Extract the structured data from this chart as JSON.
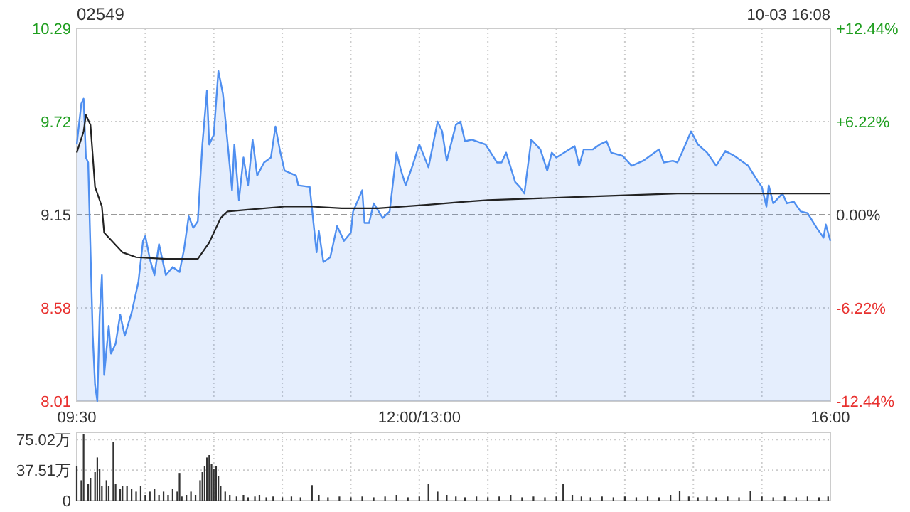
{
  "chart_data": [
    {
      "type": "area",
      "title": "02549",
      "subtitle": "10-03 16:08",
      "categories": [
        "09:30",
        null,
        null,
        null,
        null,
        null,
        null,
        null,
        null,
        null,
        null,
        null,
        null,
        null,
        null,
        null,
        null,
        null,
        null,
        null,
        null,
        null,
        null,
        null,
        null,
        null,
        null,
        null,
        null,
        null,
        null,
        null,
        null,
        null,
        null,
        null,
        null,
        null,
        null,
        null,
        null,
        null,
        null,
        null,
        null,
        null,
        null,
        null,
        null,
        null,
        null,
        null,
        null,
        null,
        null,
        null,
        null,
        null,
        null,
        null,
        null,
        null,
        null,
        null,
        null,
        null,
        null,
        null,
        null,
        null,
        null,
        null,
        null,
        null,
        null,
        null,
        null,
        null,
        null,
        null,
        null,
        null,
        null,
        null,
        null,
        null,
        null,
        null,
        null,
        null,
        null,
        null,
        null,
        null,
        null,
        null,
        null,
        null,
        null,
        null,
        null,
        null,
        null,
        null,
        null,
        null,
        null,
        null,
        null,
        null,
        null,
        null,
        null,
        null,
        null,
        null,
        null,
        null,
        null,
        null,
        null,
        null,
        null,
        null,
        null,
        null,
        null,
        null,
        null,
        null,
        null,
        null,
        null,
        null,
        null,
        null,
        null,
        null,
        null,
        null,
        null,
        null,
        null,
        null,
        null,
        null,
        null,
        null,
        null,
        null,
        "12:00/13:00",
        null,
        null,
        null,
        null,
        null,
        null,
        null,
        null,
        null,
        null,
        null,
        null,
        null,
        null,
        null,
        null,
        null,
        null,
        null,
        null,
        null,
        null,
        null,
        null,
        null,
        null,
        null,
        null,
        null,
        null,
        null,
        null,
        null,
        null,
        null,
        null,
        null,
        null,
        null,
        null,
        null,
        null,
        null,
        null,
        null,
        null,
        null,
        null,
        null,
        null,
        null,
        null,
        null,
        null,
        null,
        null,
        null,
        null,
        null,
        null,
        null,
        null,
        null,
        null,
        null,
        null,
        null,
        null,
        null,
        null,
        null,
        null,
        null,
        null,
        null,
        null,
        null,
        null,
        null,
        null,
        null,
        null,
        null,
        null,
        null,
        null,
        null,
        null,
        null,
        null,
        null,
        null,
        null,
        null,
        null,
        null,
        null,
        null,
        null,
        null,
        null,
        null,
        null,
        null,
        null,
        null,
        null,
        null,
        null,
        null,
        null,
        null,
        null,
        null,
        null,
        null,
        null,
        null,
        null,
        null,
        null,
        null,
        null,
        null,
        null,
        null,
        null,
        null,
        null,
        null,
        null,
        null,
        null,
        null,
        null,
        null,
        null,
        null,
        null,
        null,
        null,
        null,
        null,
        null,
        null,
        null,
        null,
        null,
        null,
        null,
        null,
        null,
        null,
        null,
        null,
        null,
        null,
        null,
        null,
        null,
        null,
        null,
        null,
        null,
        null,
        null,
        null,
        null,
        null,
        null,
        null,
        null,
        null,
        null,
        null,
        null,
        null,
        null,
        null,
        "16:00"
      ],
      "ylim": [
        8.01,
        10.29
      ],
      "yticks": [
        8.01,
        8.58,
        9.15,
        9.72,
        10.29
      ],
      "y2lim": [
        -12.44,
        12.44
      ],
      "y2ticks": [
        {
          "value": -12.44,
          "label": "-12.44%"
        },
        {
          "value": -6.22,
          "label": "-6.22%"
        },
        {
          "value": 0,
          "label": "0.00%"
        },
        {
          "value": 6.22,
          "label": "+6.22%"
        },
        {
          "value": 12.44,
          "label": "+12.44%"
        }
      ],
      "grid": true,
      "ref_lines": [
        {
          "axis": "y",
          "value": 9.15,
          "line_style": "dashed",
          "color": "#999999"
        }
      ],
      "series": [
        {
          "color": "#4f8ff0",
          "values": [
            9.58,
            null,
            9.83,
            9.86,
            9.5,
            9.47,
            null,
            8.41,
            8.11,
            8.01,
            8.53,
            8.78,
            8.17,
            null,
            8.47,
            8.3,
            null,
            8.36,
            null,
            8.54,
            null,
            8.41,
            null,
            null,
            8.55,
            null,
            null,
            8.74,
            null,
            8.99,
            9.02,
            null,
            8.88,
            null,
            8.78,
            null,
            8.97,
            null,
            null,
            8.78,
            null,
            null,
            8.83,
            null,
            null,
            8.8,
            null,
            8.94,
            null,
            9.14,
            null,
            9.07,
            null,
            9.11,
            null,
            9.58,
            null,
            9.91,
            9.58,
            null,
            9.64,
            null,
            10.03,
            null,
            9.89,
            null,
            null,
            null,
            9.3,
            9.58,
            null,
            9.24,
            null,
            9.5,
            null,
            9.33,
            null,
            9.61,
            null,
            9.39,
            null,
            null,
            9.47,
            null,
            null,
            9.5,
            null,
            9.69,
            null,
            9.54,
            null,
            9.42,
            null,
            null,
            null,
            null,
            9.39,
            9.33,
            null,
            null,
            null,
            null,
            9.32,
            null,
            null,
            8.92,
            9.05,
            null,
            8.86,
            null,
            null,
            8.89,
            null,
            null,
            9.08,
            null,
            null,
            8.99,
            null,
            null,
            9.04,
            9.17,
            null,
            null,
            null,
            9.3,
            9.1,
            null,
            9.1,
            null,
            9.22,
            null,
            null,
            null,
            9.13,
            null,
            null,
            9.17,
            null,
            null,
            9.53,
            null,
            9.42,
            null,
            9.33,
            null,
            null,
            9.45,
            null,
            null,
            9.58,
            null,
            null,
            null,
            9.44,
            null,
            null,
            null,
            9.72,
            null,
            9.66,
            null,
            9.48,
            null,
            null,
            null,
            9.7,
            null,
            9.72,
            null,
            9.6,
            null,
            null,
            9.61,
            null,
            null,
            null,
            null,
            null,
            9.58,
            null,
            null,
            null,
            null,
            9.47,
            null,
            9.47,
            null,
            9.53,
            null,
            null,
            null,
            9.35,
            null,
            9.32,
            null,
            9.28,
            null,
            null,
            9.61,
            null,
            9.58,
            null,
            9.55,
            null,
            null,
            9.42,
            null,
            9.53,
            null,
            9.5,
            null,
            null,
            null,
            null,
            null,
            null,
            null,
            9.57,
            null,
            9.45,
            null,
            9.55,
            null,
            null,
            null,
            9.55,
            null,
            null,
            9.58,
            null,
            null,
            9.6,
            null,
            9.53,
            null,
            null,
            null,
            null,
            9.51,
            null,
            null,
            null,
            9.45,
            null,
            null,
            null,
            null,
            9.48,
            null,
            null,
            9.51,
            null,
            null,
            null,
            9.55,
            null,
            9.47,
            null,
            null,
            null,
            9.48,
            null,
            9.47,
            null,
            9.53,
            null,
            null,
            null,
            9.66,
            null,
            null,
            9.58,
            null,
            null,
            null,
            9.53,
            null,
            null,
            null,
            9.45,
            null,
            null,
            null,
            9.54,
            null,
            null,
            null,
            9.51,
            null,
            null,
            null,
            null,
            null,
            9.45,
            null,
            null,
            null,
            9.36,
            null,
            9.32,
            null,
            9.2,
            9.33,
            null,
            9.22,
            null,
            null,
            null,
            9.28,
            null,
            9.22,
            null,
            null,
            9.23,
            null,
            null,
            9.17,
            null,
            null,
            9.16,
            null,
            null,
            null,
            9.07,
            null,
            null,
            9.01,
            9.09,
            null,
            8.99
          ]
        },
        {
          "type": "line",
          "color": "#222222",
          "values": [
            9.53,
            null,
            null,
            9.66,
            9.76,
            null,
            9.7,
            null,
            9.32,
            null,
            null,
            9.2,
            9.04,
            null,
            null,
            null,
            8.98,
            null,
            null,
            null,
            8.92,
            null,
            null,
            null,
            null,
            null,
            8.89,
            null,
            null,
            null,
            null,
            null,
            null,
            null,
            null,
            null,
            null,
            null,
            null,
            8.88,
            null,
            null,
            null,
            null,
            null,
            null,
            null,
            null,
            null,
            null,
            null,
            null,
            null,
            8.88,
            null,
            null,
            null,
            null,
            8.98,
            null,
            null,
            null,
            null,
            9.13,
            null,
            null,
            9.17,
            null,
            null,
            null,
            null,
            null,
            null,
            null,
            9.18,
            null,
            null,
            null,
            null,
            null,
            null,
            null,
            null,
            null,
            null,
            null,
            null,
            null,
            null,
            null,
            null,
            9.2,
            null,
            null,
            null,
            null,
            null,
            null,
            null,
            null,
            null,
            null,
            null,
            9.2,
            null,
            null,
            null,
            null,
            null,
            null,
            null,
            null,
            null,
            null,
            null,
            null,
            9.19,
            null,
            null,
            null,
            null,
            null,
            null,
            null,
            null,
            null,
            null,
            null,
            null,
            null,
            null,
            null,
            9.19,
            null,
            null,
            null,
            null,
            null,
            null,
            null,
            null,
            null,
            null,
            null,
            null,
            null,
            null,
            null,
            null,
            null,
            null,
            null,
            null,
            9.21,
            null,
            null,
            null,
            null,
            null,
            null,
            null,
            null,
            null,
            null,
            null,
            null,
            null,
            null,
            null,
            null,
            9.23,
            null,
            null,
            null,
            null,
            null,
            null,
            null,
            null,
            null,
            9.24,
            null,
            null,
            null,
            null,
            null,
            null,
            null,
            null,
            null,
            null,
            null,
            null,
            null,
            null,
            null,
            null,
            null,
            null,
            null,
            null,
            null,
            null,
            null,
            null,
            null,
            null,
            null,
            null,
            null,
            null,
            null,
            null,
            null,
            null,
            null,
            null,
            null,
            null,
            null,
            null,
            null,
            9.26,
            null,
            null,
            null,
            null,
            null,
            null,
            null,
            null,
            null,
            null,
            null,
            null,
            null,
            null,
            null,
            null,
            null,
            null,
            null,
            null,
            null,
            null,
            null,
            null,
            null,
            null,
            null,
            null,
            null,
            null,
            null,
            null,
            null,
            null,
            null,
            null,
            null,
            null,
            null,
            null,
            9.28,
            null,
            null,
            null,
            null,
            null,
            null,
            null,
            null,
            null,
            null,
            null,
            null,
            null,
            null,
            null,
            null,
            null,
            null,
            null,
            null,
            null,
            null,
            null,
            null,
            null,
            null,
            null,
            null,
            null,
            null,
            null,
            null,
            null,
            null,
            null,
            null,
            null,
            null,
            null,
            null,
            null,
            9.28,
            null,
            null,
            null,
            null,
            null,
            null,
            null,
            null,
            null,
            null,
            null,
            null,
            null,
            null,
            null,
            null,
            null,
            null,
            null,
            null,
            null,
            null,
            null,
            null,
            9.28
          ]
        }
      ]
    },
    {
      "type": "bar",
      "color": "#333333",
      "tick_labels": "y",
      "grid": true,
      "categories": [
        null,
        null,
        null,
        null,
        null,
        null,
        null,
        null,
        null,
        null,
        null,
        null,
        null,
        null,
        null,
        null,
        null,
        null,
        null,
        null,
        null,
        null,
        null,
        null,
        null,
        null,
        null,
        null,
        null,
        null,
        null,
        null,
        null,
        null,
        null,
        null,
        null,
        null,
        null,
        null,
        null,
        null,
        null,
        null,
        null,
        null,
        null,
        null,
        null,
        null,
        null,
        null,
        null,
        null,
        null,
        null,
        null,
        null,
        null,
        null,
        null,
        null,
        null,
        null,
        null,
        null,
        null,
        null,
        null,
        null,
        null,
        null,
        null,
        null,
        null,
        null,
        null,
        null,
        null,
        null,
        null,
        null,
        null,
        null,
        null,
        null,
        null,
        null,
        null,
        null,
        null,
        null,
        null,
        null,
        null,
        null,
        null,
        null,
        null,
        null,
        null,
        null,
        null,
        null,
        null,
        null,
        null,
        null,
        null,
        null,
        null,
        null,
        null,
        null,
        null,
        null,
        null,
        null,
        null,
        null,
        null,
        null,
        null,
        null,
        null,
        null,
        null,
        null,
        null,
        null,
        null,
        null,
        null,
        null,
        null,
        null,
        null,
        null,
        null,
        null,
        null,
        null,
        null,
        null,
        null,
        null,
        null,
        null,
        null,
        null,
        null,
        null,
        null,
        null,
        null,
        null,
        null,
        null,
        null,
        null,
        null,
        null,
        null,
        null,
        null,
        null,
        null,
        null,
        null,
        null,
        null,
        null,
        null,
        null,
        null,
        null,
        null,
        null,
        null,
        null,
        null,
        null,
        null,
        null,
        null,
        null,
        null,
        null,
        null,
        null,
        null,
        null,
        null,
        null,
        null,
        null,
        null,
        null,
        null,
        null,
        null,
        null,
        null,
        null,
        null,
        null,
        null,
        null,
        null,
        null,
        null,
        null,
        null,
        null,
        null,
        null,
        null,
        null,
        null,
        null,
        null,
        null,
        null,
        null,
        null,
        null,
        null,
        null,
        null,
        null,
        null,
        null,
        null,
        null,
        null,
        null,
        null,
        null,
        null,
        null,
        null,
        null,
        null,
        null,
        null,
        null,
        null,
        null,
        null,
        null,
        null,
        null,
        null,
        null,
        null,
        null,
        null,
        null,
        null,
        null,
        null,
        null,
        null,
        null,
        null,
        null,
        null,
        null,
        null,
        null,
        null,
        null,
        null,
        null,
        null,
        null,
        null,
        null,
        null,
        null,
        null,
        null,
        null,
        null,
        null,
        null,
        null,
        null,
        null,
        null,
        null,
        null,
        null,
        null,
        null,
        null,
        null,
        null,
        null,
        null,
        null,
        null,
        null,
        null,
        null,
        null,
        null,
        null,
        null,
        null,
        null,
        null,
        null,
        null,
        null,
        null,
        null,
        null,
        null,
        null,
        null,
        null,
        null,
        null,
        null,
        null,
        null,
        null,
        null,
        null,
        null
      ],
      "ylim": [
        0,
        84
      ],
      "yticks": [
        0,
        {
          "value": 37.51,
          "label": "37.51万"
        },
        {
          "value": 75.02,
          "label": "75.02万"
        }
      ],
      "values": [
        42,
        null,
        25,
        82,
        null,
        21,
        28,
        null,
        35,
        53,
        39,
        18,
        null,
        25,
        18,
        null,
        72,
        21,
        null,
        14,
        18,
        null,
        18,
        null,
        14,
        null,
        11,
        null,
        18,
        null,
        7,
        null,
        11,
        null,
        14,
        null,
        7,
        null,
        11,
        null,
        7,
        null,
        14,
        null,
        11,
        34,
        5,
        null,
        7,
        null,
        11,
        null,
        7,
        null,
        25,
        35,
        42,
        53,
        56,
        45,
        39,
        42,
        30,
        18,
        null,
        11,
        null,
        7,
        null,
        null,
        5,
        null,
        null,
        7,
        null,
        4,
        null,
        null,
        5,
        null,
        7,
        null,
        null,
        4,
        null,
        null,
        5,
        null,
        null,
        null,
        4,
        null,
        null,
        null,
        5,
        null,
        null,
        null,
        4,
        null,
        null,
        null,
        null,
        19,
        null,
        null,
        7,
        null,
        null,
        null,
        4,
        null,
        null,
        null,
        null,
        5,
        null,
        null,
        null,
        null,
        4,
        null,
        null,
        null,
        null,
        5,
        null,
        null,
        null,
        null,
        4,
        null,
        null,
        null,
        null,
        5,
        null,
        null,
        null,
        null,
        7,
        null,
        null,
        null,
        null,
        4,
        null,
        null,
        null,
        null,
        5,
        null,
        null,
        null,
        21,
        null,
        null,
        null,
        11,
        null,
        null,
        null,
        7,
        null,
        null,
        null,
        5,
        null,
        null,
        null,
        4,
        null,
        null,
        null,
        null,
        5,
        null,
        null,
        null,
        null,
        4,
        null,
        null,
        null,
        null,
        5,
        null,
        null,
        null,
        null,
        7,
        null,
        null,
        null,
        null,
        4,
        null,
        null,
        null,
        null,
        5,
        null,
        null,
        null,
        null,
        4,
        null,
        null,
        null,
        null,
        5,
        null,
        null,
        21,
        null,
        null,
        null,
        7,
        null,
        null,
        null,
        5,
        null,
        null,
        null,
        4,
        null,
        null,
        null,
        null,
        5,
        null,
        null,
        null,
        null,
        4,
        null,
        null,
        null,
        null,
        5,
        null,
        null,
        null,
        null,
        4,
        null,
        null,
        null,
        null,
        5,
        null,
        null,
        null,
        null,
        4,
        null,
        null,
        null,
        null,
        7,
        null,
        null,
        null,
        12,
        null,
        null,
        null,
        5,
        null,
        null,
        null,
        4,
        null,
        null,
        null,
        5,
        null,
        null,
        null,
        4,
        null,
        null,
        null,
        null,
        5,
        null,
        null,
        null,
        null,
        4,
        null,
        null,
        null,
        null,
        12,
        null,
        null,
        null,
        null,
        5,
        null,
        null,
        null,
        null,
        4,
        null,
        null,
        null,
        null,
        5,
        null,
        null,
        null,
        null,
        4,
        null,
        null,
        null,
        null,
        5,
        null,
        null,
        null,
        null,
        4,
        null,
        null,
        null,
        5,
        null
      ]
    }
  ]
}
